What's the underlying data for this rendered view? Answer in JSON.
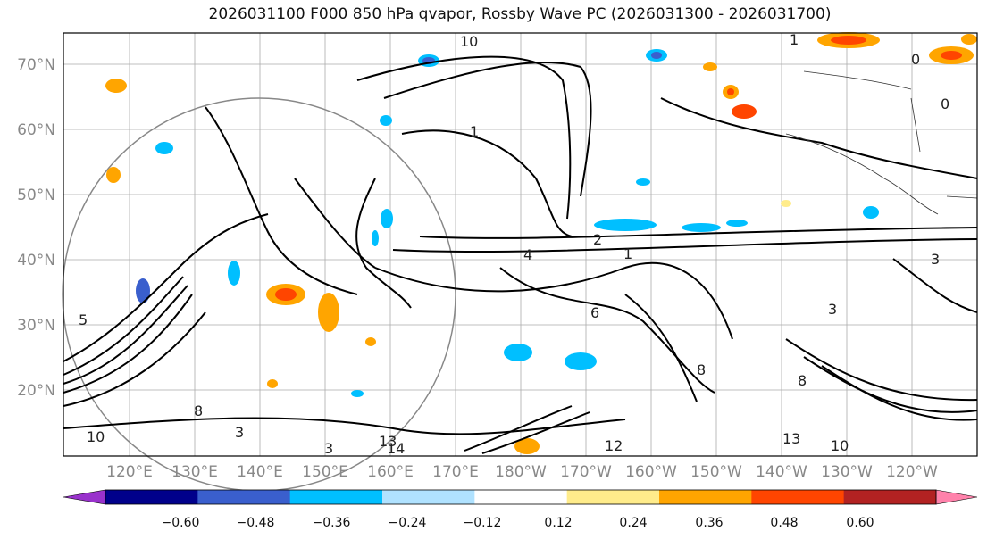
{
  "title": "2026031100 F000 850 hPa qvapor, Rossby Wave PC (2026031300 - 2026031700)",
  "map": {
    "lat_labels": [
      "70°N",
      "60°N",
      "50°N",
      "40°N",
      "30°N",
      "20°N"
    ],
    "lon_labels": [
      "120°E",
      "130°E",
      "140°E",
      "150°E",
      "160°E",
      "170°E",
      "180°W",
      "170°W",
      "160°W",
      "150°W",
      "140°W",
      "130°W",
      "120°W"
    ],
    "contour_labels": [
      "10",
      "1",
      "1",
      "0",
      "1",
      "4",
      "2",
      "3",
      "6",
      "8",
      "8",
      "3",
      "3",
      "8",
      "10",
      "13",
      "14",
      "12",
      "13",
      "10",
      "3",
      "5",
      "0"
    ]
  },
  "colorbar": {
    "ticks": [
      "−0.60",
      "−0.48",
      "−0.36",
      "−0.24",
      "−0.12",
      "0.12",
      "0.24",
      "0.36",
      "0.48",
      "0.60"
    ],
    "colors": [
      "#9932cc",
      "#00008b",
      "#3a5fcd",
      "#00bfff",
      "#b0e2ff",
      "#ffffff",
      "#ffec8b",
      "#ffa500",
      "#ff4500",
      "#b22222",
      "#ff82ab"
    ]
  }
}
